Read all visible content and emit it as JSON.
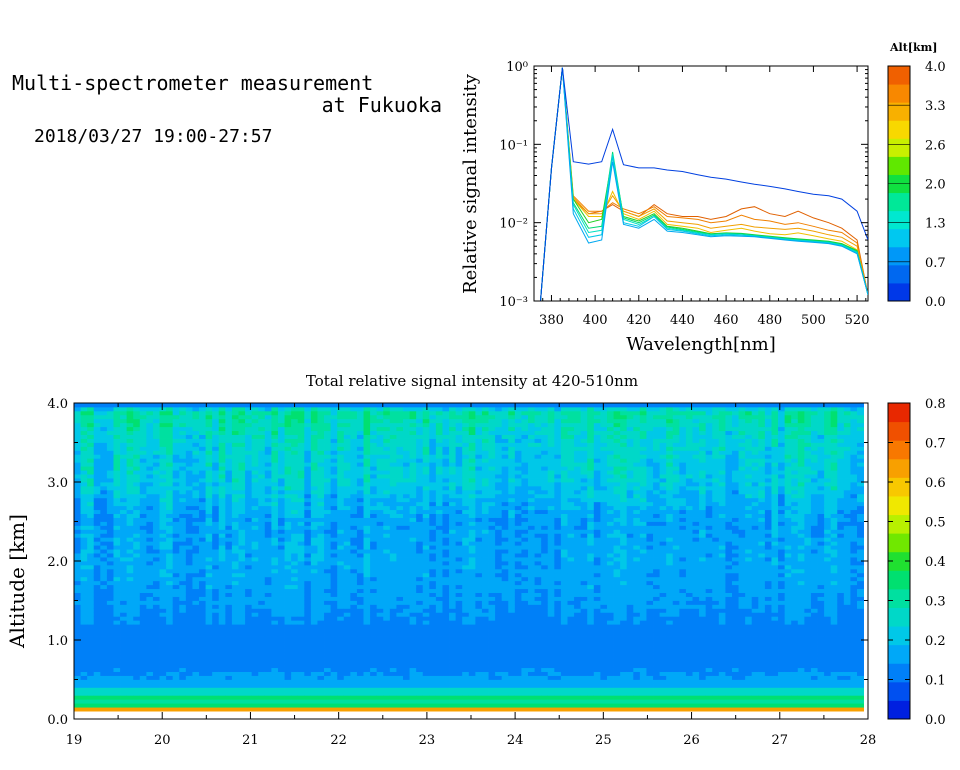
{
  "header": {
    "title_line1": "Multi-spectrometer measurement",
    "title_line2": "at Fukuoka",
    "datetime": "2018/03/27 19:00-27:57"
  },
  "chart_data": [
    {
      "type": "line",
      "xlabel": "Wavelength[nm]",
      "ylabel": "Relative signal intensity",
      "xlim": [
        372,
        525
      ],
      "ylim": [
        0.001,
        1
      ],
      "yscale": "log",
      "xticks": [
        380,
        400,
        420,
        440,
        460,
        480,
        500,
        520
      ],
      "x_tick_labels": [
        "380",
        "400",
        "420",
        "440",
        "460",
        "480",
        "500",
        "520"
      ],
      "y_tick_labels": [
        "10⁻³",
        "10⁻²",
        "10⁻¹",
        "10⁰"
      ],
      "x": [
        375,
        380,
        385,
        390,
        397,
        403,
        408,
        413,
        420,
        427,
        433,
        440,
        447,
        453,
        460,
        467,
        473,
        480,
        487,
        493,
        500,
        507,
        513,
        520,
        525
      ],
      "series": [
        {
          "alt": 0.0,
          "color": "#0040e0",
          "values": [
            0.001,
            0.05,
            0.95,
            0.06,
            0.056,
            0.06,
            0.155,
            0.055,
            0.05,
            0.05,
            0.047,
            0.045,
            0.041,
            0.038,
            0.036,
            0.033,
            0.031,
            0.029,
            0.027,
            0.025,
            0.023,
            0.022,
            0.02,
            0.014,
            0.006
          ]
        },
        {
          "alt": 0.7,
          "color": "#00a8f0",
          "values": [
            0.001,
            0.05,
            0.95,
            0.013,
            0.0055,
            0.006,
            0.06,
            0.0095,
            0.0085,
            0.011,
            0.0078,
            0.0075,
            0.007,
            0.0066,
            0.0068,
            0.0067,
            0.0066,
            0.0063,
            0.006,
            0.0058,
            0.0056,
            0.0054,
            0.005,
            0.004,
            0.0012
          ]
        },
        {
          "alt": 1.0,
          "color": "#00c8e8",
          "values": [
            0.001,
            0.05,
            0.95,
            0.015,
            0.0065,
            0.007,
            0.07,
            0.01,
            0.009,
            0.012,
            0.0082,
            0.0078,
            0.0072,
            0.0068,
            0.007,
            0.0069,
            0.0067,
            0.0064,
            0.0061,
            0.0059,
            0.0057,
            0.0055,
            0.0051,
            0.0041,
            0.0012
          ]
        },
        {
          "alt": 1.3,
          "color": "#00e0c0",
          "values": [
            0.001,
            0.05,
            0.95,
            0.017,
            0.0075,
            0.008,
            0.075,
            0.011,
            0.0095,
            0.012,
            0.0085,
            0.008,
            0.0074,
            0.007,
            0.0072,
            0.007,
            0.0068,
            0.0065,
            0.0062,
            0.006,
            0.0058,
            0.0056,
            0.0052,
            0.0042,
            0.0012
          ]
        },
        {
          "alt": 1.7,
          "color": "#00d870",
          "values": [
            0.001,
            0.05,
            0.95,
            0.018,
            0.0085,
            0.009,
            0.08,
            0.0115,
            0.01,
            0.0125,
            0.0088,
            0.0082,
            0.0076,
            0.0071,
            0.0073,
            0.0072,
            0.0069,
            0.0066,
            0.0063,
            0.0061,
            0.0059,
            0.0057,
            0.0053,
            0.0043,
            0.0012
          ]
        },
        {
          "alt": 2.3,
          "color": "#20d020",
          "values": [
            0.001,
            0.05,
            0.95,
            0.02,
            0.01,
            0.011,
            0.07,
            0.012,
            0.0105,
            0.013,
            0.009,
            0.0085,
            0.0078,
            0.0072,
            0.0074,
            0.0073,
            0.007,
            0.0067,
            0.0064,
            0.0062,
            0.006,
            0.0058,
            0.0054,
            0.0044,
            0.0012
          ]
        },
        {
          "alt": 3.0,
          "color": "#f0c000",
          "values": [
            0.001,
            0.05,
            0.95,
            0.02,
            0.012,
            0.012,
            0.025,
            0.013,
            0.011,
            0.014,
            0.0095,
            0.009,
            0.0085,
            0.0075,
            0.008,
            0.0085,
            0.0078,
            0.0072,
            0.007,
            0.0074,
            0.0068,
            0.0062,
            0.0058,
            0.0045,
            0.0012
          ]
        },
        {
          "alt": 3.3,
          "color": "#f0a000",
          "values": [
            0.001,
            0.05,
            0.95,
            0.021,
            0.013,
            0.013,
            0.022,
            0.014,
            0.012,
            0.015,
            0.0105,
            0.01,
            0.0095,
            0.0085,
            0.009,
            0.0095,
            0.0088,
            0.0085,
            0.0082,
            0.0085,
            0.0078,
            0.007,
            0.0065,
            0.005,
            0.0012
          ]
        },
        {
          "alt": 3.7,
          "color": "#f08000",
          "values": [
            0.001,
            0.05,
            0.95,
            0.022,
            0.014,
            0.014,
            0.018,
            0.015,
            0.013,
            0.016,
            0.012,
            0.0115,
            0.011,
            0.01,
            0.0105,
            0.0125,
            0.011,
            0.0105,
            0.0095,
            0.01,
            0.009,
            0.008,
            0.0075,
            0.0055,
            0.0012
          ]
        },
        {
          "alt": 4.0,
          "color": "#e06000",
          "values": [
            0.001,
            0.05,
            0.95,
            0.02,
            0.013,
            0.014,
            0.017,
            0.014,
            0.012,
            0.017,
            0.013,
            0.012,
            0.012,
            0.011,
            0.012,
            0.015,
            0.016,
            0.013,
            0.012,
            0.014,
            0.0115,
            0.01,
            0.0085,
            0.006,
            0.0012
          ]
        }
      ],
      "colorbar": {
        "title": "Alt[km]",
        "range": [
          0.0,
          4.0
        ],
        "labels": [
          "0.0",
          "0.7",
          "1.3",
          "2.0",
          "2.6",
          "3.3",
          "4.0"
        ],
        "colors": [
          "#0038e8",
          "#0068f0",
          "#0098f8",
          "#00c8f0",
          "#00e8d0",
          "#00e898",
          "#10e040",
          "#60e800",
          "#c8f000",
          "#f8d800",
          "#f8b000",
          "#f88800",
          "#f06000"
        ]
      }
    },
    {
      "type": "heatmap",
      "title": "Total relative signal intensity at 420-510nm",
      "xlabel": "",
      "ylabel": "Altitude [km]",
      "xlim": [
        19,
        28
      ],
      "ylim": [
        0.0,
        4.0
      ],
      "x_tick_labels": [
        "19",
        "20",
        "21",
        "22",
        "23",
        "24",
        "25",
        "26",
        "27",
        "28"
      ],
      "y_tick_labels": [
        "0.0",
        "1.0",
        "2.0",
        "3.0",
        "4.0"
      ],
      "data_time_range": [
        19.0,
        27.95
      ],
      "vertical_profile": {
        "altitude": [
          0.1,
          0.15,
          0.2,
          0.25,
          0.3,
          0.35,
          0.4,
          0.5,
          0.8,
          1.0,
          1.5,
          2.0,
          2.5,
          3.0,
          3.5,
          3.9,
          4.0
        ],
        "value": [
          0.72,
          0.55,
          0.2,
          0.42,
          0.25,
          0.3,
          0.2,
          0.15,
          0.11,
          0.12,
          0.15,
          0.17,
          0.16,
          0.22,
          0.24,
          0.3,
          0.06
        ]
      },
      "colorbar": {
        "range": [
          0.0,
          0.8
        ],
        "labels": [
          "0.0",
          "0.1",
          "0.2",
          "0.3",
          "0.4",
          "0.5",
          "0.6",
          "0.7",
          "0.8"
        ],
        "colors": [
          "#0020e0",
          "#0050f0",
          "#0080f8",
          "#00a8f8",
          "#00c8e8",
          "#00d8c8",
          "#00e0a0",
          "#00e070",
          "#20e030",
          "#70e800",
          "#b8f000",
          "#f0e800",
          "#f8c800",
          "#f8a000",
          "#f87800",
          "#f05000",
          "#e82800"
        ]
      }
    }
  ]
}
